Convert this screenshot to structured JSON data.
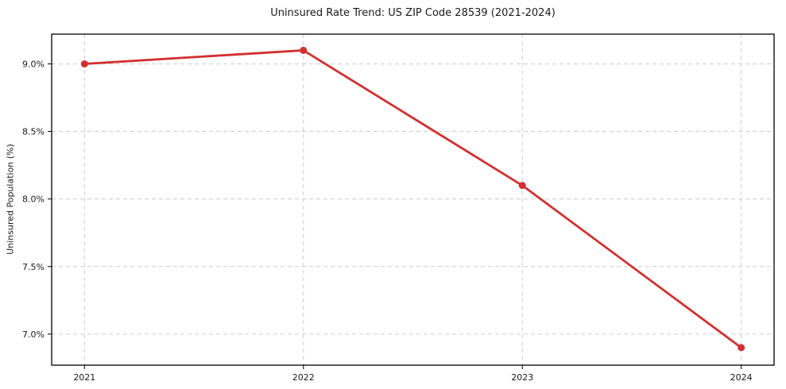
{
  "chart_data": {
    "type": "line",
    "title": "Uninsured Rate Trend: US ZIP Code 28539 (2021-2024)",
    "xlabel": "",
    "ylabel": "Uninsured Population (%)",
    "categories": [
      "2021",
      "2022",
      "2023",
      "2024"
    ],
    "series": [
      {
        "name": "Uninsured Population (%)",
        "values": [
          9.0,
          9.1,
          8.1,
          6.9
        ]
      }
    ],
    "yticks": [
      7.0,
      7.5,
      8.0,
      8.5,
      9.0
    ],
    "ytick_labels": [
      "7.0%",
      "7.5%",
      "8.0%",
      "8.5%",
      "9.0%"
    ],
    "ylim": [
      6.77,
      9.22
    ],
    "grid": true,
    "legend": "none",
    "line_color": "#d32f2f",
    "marker": "circle",
    "grid_color": "#cccccc",
    "axis_color": "#000000",
    "text_color": "#1a1a1a",
    "background": "#ffffff"
  }
}
